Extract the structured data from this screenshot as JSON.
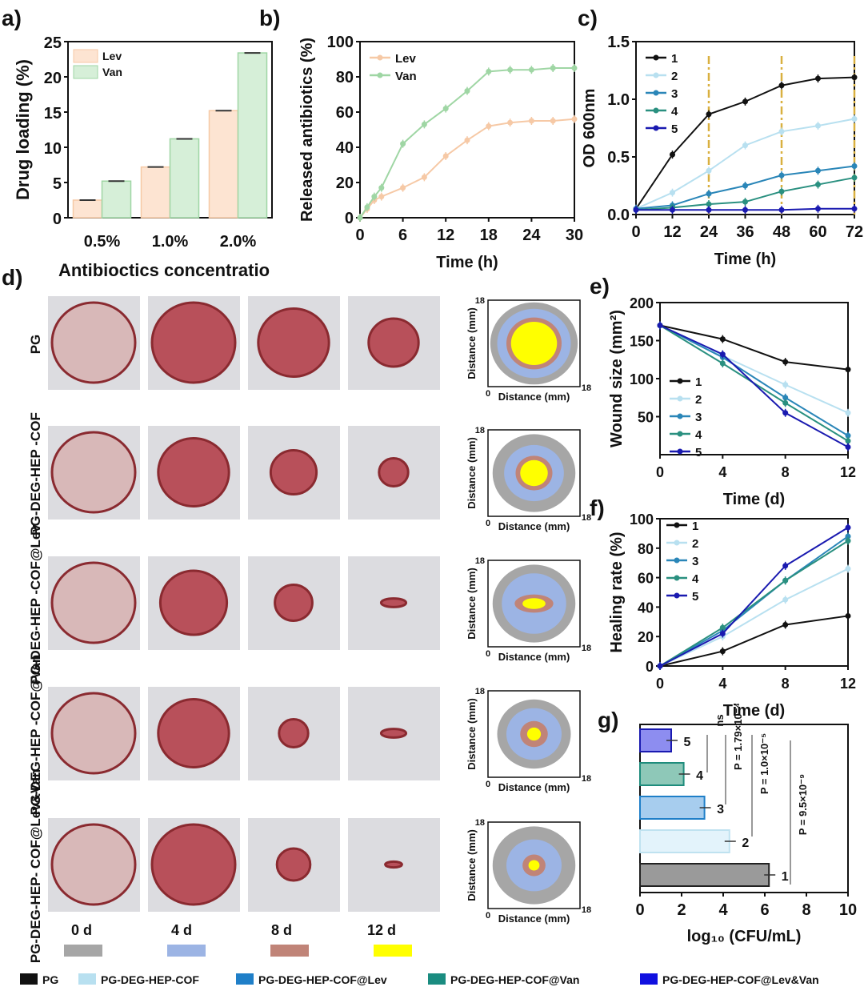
{
  "panel_labels": [
    "a)",
    "b)",
    "c)",
    "d)",
    "e)",
    "f)",
    "g)"
  ],
  "series_colors": {
    "1": "#111111",
    "2": "#b8e0f0",
    "3": "#2a86b8",
    "4": "#2a9080",
    "5": "#1a1ab0",
    "Lev": "#f6c9a6",
    "Van": "#9fd6a4"
  },
  "chart_data": [
    {
      "id": "a",
      "type": "bar",
      "categories": [
        "0.5%",
        "1.0%",
        "2.0%"
      ],
      "series": [
        {
          "name": "Lev",
          "values": [
            2.5,
            7.2,
            15.2
          ]
        },
        {
          "name": "Van",
          "values": [
            5.2,
            11.2,
            23.4
          ]
        }
      ],
      "xlabel": "Antibioctics concentratio",
      "ylabel": "Drug loading (%)",
      "ylim": [
        0,
        25
      ],
      "yticks": [
        0,
        5,
        10,
        15,
        20,
        25
      ],
      "legend": "top-left"
    },
    {
      "id": "b",
      "type": "line",
      "x": [
        0,
        1,
        2,
        3,
        6,
        9,
        12,
        15,
        18,
        21,
        24,
        27,
        30
      ],
      "series": [
        {
          "name": "Lev",
          "values": [
            0,
            5,
            10,
            12,
            17,
            23,
            35,
            44,
            52,
            54,
            55,
            55,
            56
          ]
        },
        {
          "name": "Van",
          "values": [
            0,
            6,
            12,
            17,
            42,
            53,
            62,
            72,
            83,
            84,
            84,
            85,
            85
          ]
        }
      ],
      "xlabel": "Time (h)",
      "ylabel": "Released antibiotics (%)",
      "xlim": [
        0,
        30
      ],
      "ylim": [
        0,
        100
      ],
      "xticks": [
        0,
        6,
        12,
        18,
        24,
        30
      ],
      "yticks": [
        0,
        20,
        40,
        60,
        80,
        100
      ],
      "legend": "top-left"
    },
    {
      "id": "c",
      "type": "line",
      "x": [
        0,
        12,
        24,
        36,
        48,
        60,
        72
      ],
      "series": [
        {
          "name": "1",
          "values": [
            0.05,
            0.52,
            0.87,
            0.98,
            1.12,
            1.18,
            1.19
          ]
        },
        {
          "name": "2",
          "values": [
            0.05,
            0.19,
            0.38,
            0.6,
            0.72,
            0.77,
            0.83
          ]
        },
        {
          "name": "3",
          "values": [
            0.05,
            0.08,
            0.18,
            0.25,
            0.34,
            0.38,
            0.42
          ]
        },
        {
          "name": "4",
          "values": [
            0.04,
            0.06,
            0.09,
            0.11,
            0.2,
            0.26,
            0.32
          ]
        },
        {
          "name": "5",
          "values": [
            0.04,
            0.04,
            0.04,
            0.04,
            0.04,
            0.05,
            0.05
          ]
        }
      ],
      "xlabel": "Time (h)",
      "ylabel": "OD 600nm",
      "xlim": [
        0,
        72
      ],
      "ylim": [
        0,
        1.5
      ],
      "xticks": [
        0,
        12,
        24,
        36,
        48,
        60,
        72
      ],
      "yticks": [
        "0.0",
        "0.5",
        "1.0",
        "1.5"
      ],
      "vlines": [
        24,
        48,
        72
      ],
      "legend": "top-left"
    },
    {
      "id": "e",
      "type": "line",
      "x": [
        0,
        4,
        8,
        12
      ],
      "series": [
        {
          "name": "1",
          "values": [
            170,
            152,
            122,
            112
          ]
        },
        {
          "name": "2",
          "values": [
            170,
            130,
            92,
            55
          ]
        },
        {
          "name": "3",
          "values": [
            170,
            128,
            75,
            25
          ]
        },
        {
          "name": "4",
          "values": [
            170,
            120,
            68,
            18
          ]
        },
        {
          "name": "5",
          "values": [
            170,
            132,
            55,
            10
          ]
        }
      ],
      "xlabel": "Time (d)",
      "ylabel": "Wound size (mm²)",
      "xlim": [
        0,
        12
      ],
      "ylim": [
        0,
        200
      ],
      "xticks": [
        0,
        4,
        8,
        12
      ],
      "yticks": [
        50,
        100,
        150,
        200
      ],
      "legend": "left"
    },
    {
      "id": "f",
      "type": "line",
      "x": [
        0,
        4,
        8,
        12
      ],
      "series": [
        {
          "name": "1",
          "values": [
            0,
            10,
            28,
            34
          ]
        },
        {
          "name": "2",
          "values": [
            0,
            20,
            45,
            66
          ]
        },
        {
          "name": "3",
          "values": [
            0,
            24,
            58,
            88
          ]
        },
        {
          "name": "4",
          "values": [
            0,
            26,
            58,
            85
          ]
        },
        {
          "name": "5",
          "values": [
            0,
            22,
            68,
            94
          ]
        }
      ],
      "xlabel": "Time (d)",
      "ylabel": "Healing rate (%)",
      "xlim": [
        0,
        12
      ],
      "ylim": [
        0,
        100
      ],
      "xticks": [
        0,
        4,
        8,
        12
      ],
      "yticks": [
        0,
        20,
        40,
        60,
        80,
        100
      ],
      "legend": "top-left"
    },
    {
      "id": "g",
      "type": "bar",
      "orientation": "horizontal",
      "categories": [
        "5",
        "4",
        "3",
        "2",
        "1"
      ],
      "values": [
        1.5,
        2.1,
        3.1,
        4.3,
        6.2
      ],
      "xlabel": "log₁₀ (CFU/mL)",
      "xlim": [
        0,
        10
      ],
      "xticks": [
        0,
        2,
        4,
        6,
        8,
        10
      ],
      "annotations": [
        "ns",
        "P = 1.79×10⁻⁴",
        "P = 1.0×10⁻⁵",
        "P = 9.5×10⁻⁹"
      ]
    }
  ],
  "panel_d": {
    "rows": [
      "PG",
      "PG-DEG-HEP -COF",
      "PG-DEG-HEP -COF@Lev",
      "PG-DEG-HEP -COF@Van",
      "PG-DEG-HEP- COF@Lev&Van"
    ],
    "days": [
      "0 d",
      "4 d",
      "8 d",
      "12 d"
    ],
    "day_colors": [
      "#a6a6a6",
      "#9cb4e4",
      "#c08478",
      "#ffff00"
    ],
    "map_xlabel": "Distance (mm)",
    "map_ylabel": "Distance (mm)",
    "map_ticks": [
      "0",
      "18"
    ]
  },
  "legend": [
    {
      "label": "PG",
      "color": "#111111"
    },
    {
      "label": "PG-DEG-HEP-COF",
      "color": "#b8e0f0"
    },
    {
      "label": "PG-DEG-HEP-COF@Lev",
      "color": "#1f7fc8"
    },
    {
      "label": "PG-DEG-HEP-COF@Van",
      "color": "#1a8c80"
    },
    {
      "label": "PG-DEG-HEP-COF@Lev&Van",
      "color": "#1010e0"
    }
  ]
}
